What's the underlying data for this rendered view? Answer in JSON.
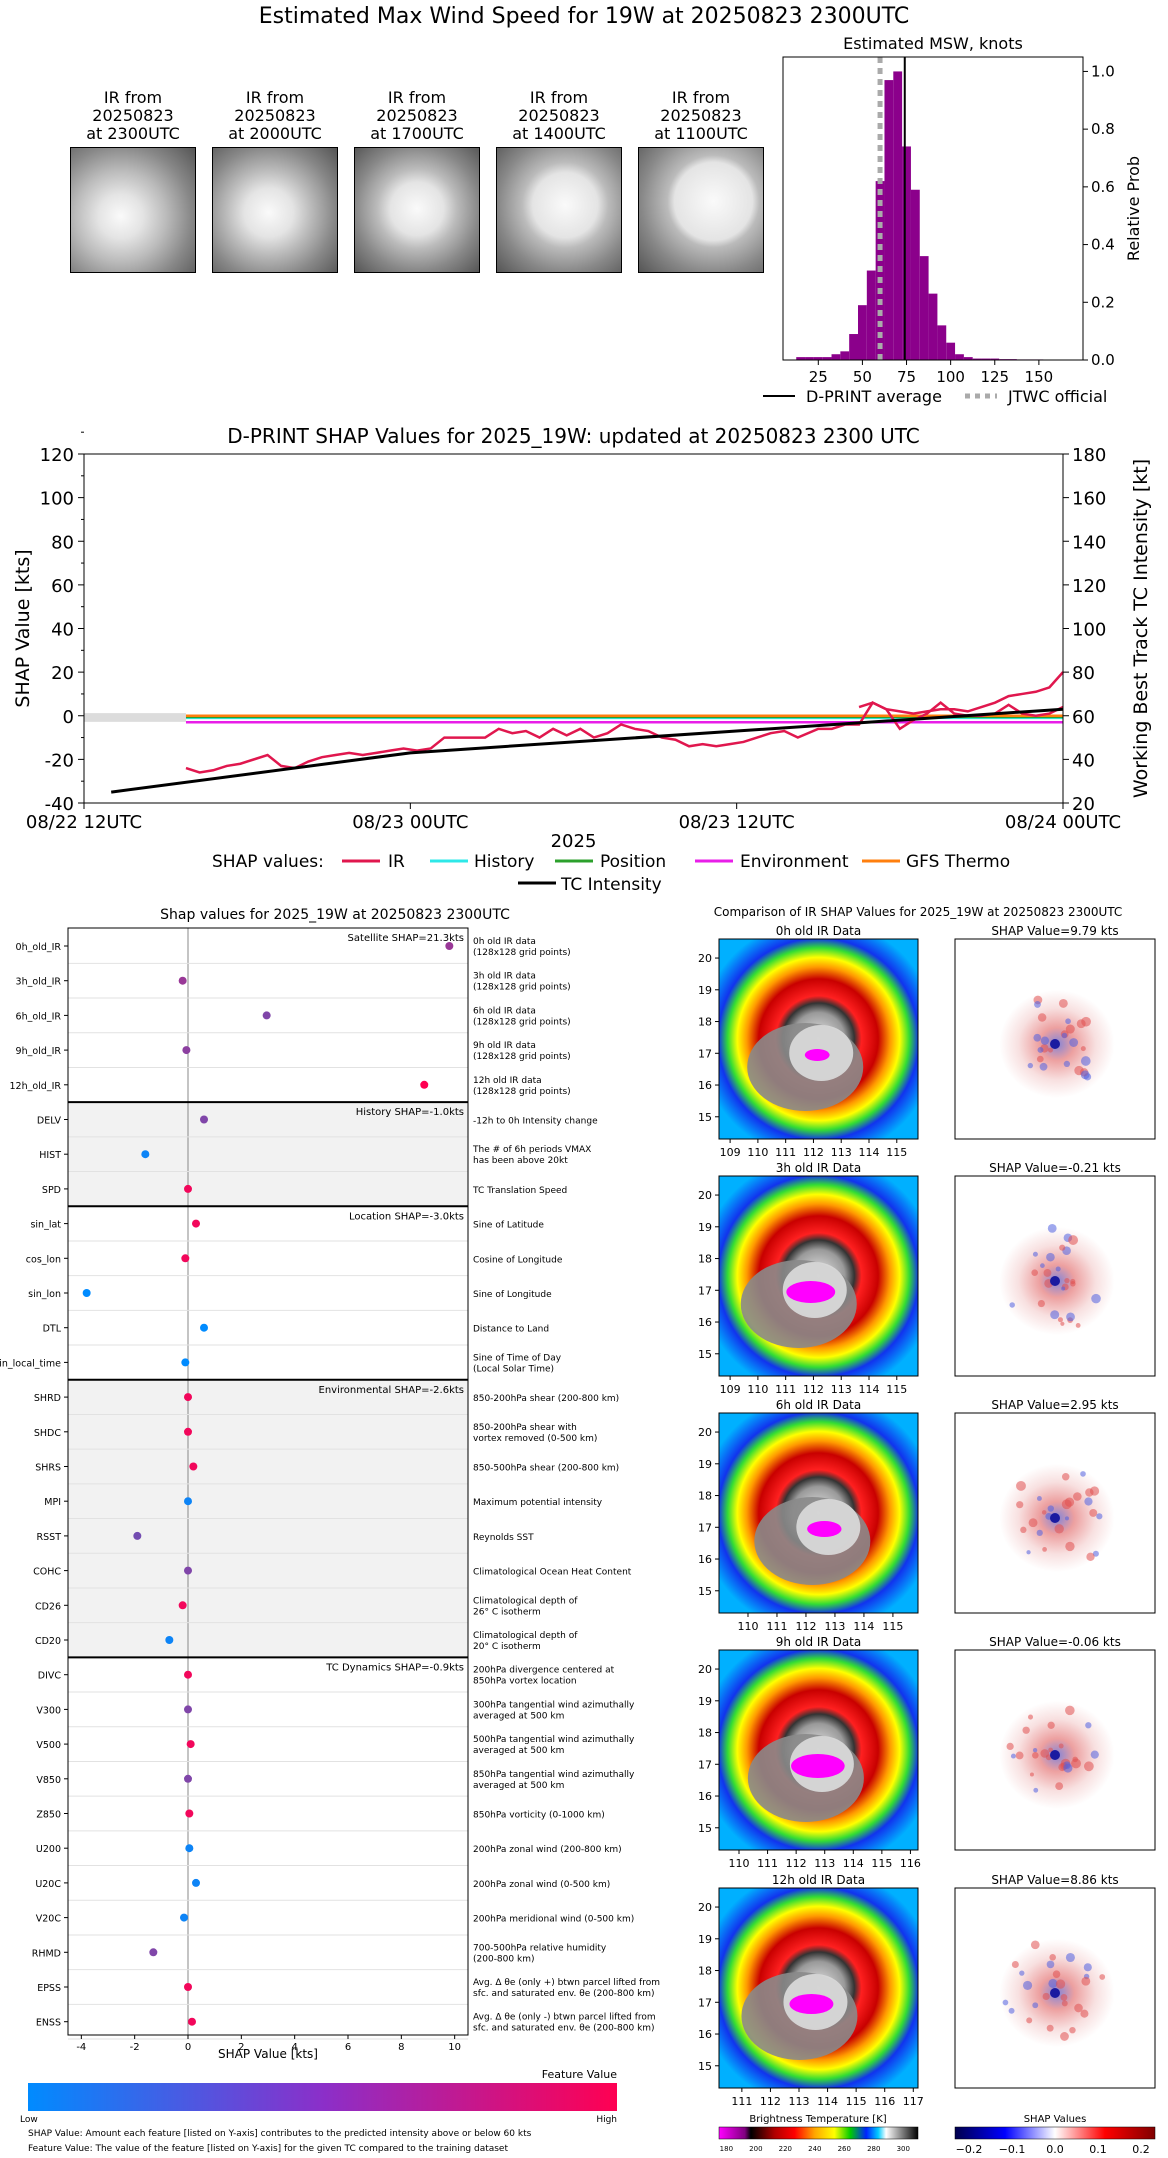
{
  "figure": {
    "title": "Estimated Max Wind Speed for 19W at 20250823 2300UTC"
  },
  "ir_thumbnails": [
    {
      "label": "IR from\n20250823\nat 2300UTC"
    },
    {
      "label": "IR from\n20250823\nat 2000UTC"
    },
    {
      "label": "IR from\n20250823\nat 1700UTC"
    },
    {
      "label": "IR from\n20250823\nat 1400UTC"
    },
    {
      "label": "IR from\n20250823\nat 1100UTC"
    }
  ],
  "colors": {
    "histogram": "#8b008b",
    "shap_ir": "#e0174e",
    "history": "#2ee8e8",
    "position": "#2ca02c",
    "environment": "#e81ee8",
    "gfs_thermo": "#ff7f0e",
    "tc_intensity": "#000000",
    "jtwc": "#aaaaaa"
  },
  "chart_data": [
    {
      "type": "bar",
      "title": "Estimated MSW, knots",
      "ylabel": "Relative Prob",
      "xlim": [
        5,
        175
      ],
      "ylim": [
        0,
        1.05
      ],
      "xticks": [
        25,
        50,
        75,
        100,
        125,
        150
      ],
      "yticks": [
        0.0,
        0.2,
        0.4,
        0.6,
        0.8,
        1.0
      ],
      "bin_width": 5,
      "bins": [
        {
          "x": 15,
          "y": 0.01
        },
        {
          "x": 20,
          "y": 0.01
        },
        {
          "x": 25,
          "y": 0.01
        },
        {
          "x": 30,
          "y": 0.01
        },
        {
          "x": 35,
          "y": 0.02
        },
        {
          "x": 40,
          "y": 0.03
        },
        {
          "x": 45,
          "y": 0.09
        },
        {
          "x": 50,
          "y": 0.19
        },
        {
          "x": 55,
          "y": 0.31
        },
        {
          "x": 60,
          "y": 0.62
        },
        {
          "x": 65,
          "y": 0.97
        },
        {
          "x": 70,
          "y": 1.0
        },
        {
          "x": 75,
          "y": 0.74
        },
        {
          "x": 80,
          "y": 0.59
        },
        {
          "x": 85,
          "y": 0.36
        },
        {
          "x": 90,
          "y": 0.23
        },
        {
          "x": 95,
          "y": 0.12
        },
        {
          "x": 100,
          "y": 0.06
        },
        {
          "x": 105,
          "y": 0.02
        },
        {
          "x": 110,
          "y": 0.01
        },
        {
          "x": 115,
          "y": 0.005
        },
        {
          "x": 120,
          "y": 0.005
        },
        {
          "x": 125,
          "y": 0.005
        },
        {
          "x": 130,
          "y": 0.003
        },
        {
          "x": 135,
          "y": 0.003
        },
        {
          "x": 140,
          "y": 0.002
        },
        {
          "x": 145,
          "y": 0.002
        },
        {
          "x": 150,
          "y": 0.002
        },
        {
          "x": 155,
          "y": 0.001
        },
        {
          "x": 160,
          "y": 0.001
        }
      ],
      "dprint_average": 74,
      "jtwc_official": 60,
      "legend": [
        "D-PRINT average",
        "JTWC official"
      ]
    },
    {
      "type": "line",
      "title": "D-PRINT SHAP Values for 2025_19W: updated at 20250823 2300 UTC",
      "xlabel": "2025",
      "ylabel": "SHAP Value [kts]",
      "y2label": "Working Best Track TC Intensity [kt]",
      "xlim": [
        0,
        36
      ],
      "ylim": [
        -40,
        120
      ],
      "y2lim": [
        20,
        180
      ],
      "xticks": [
        {
          "x": 0,
          "label": "08/22 12UTC"
        },
        {
          "x": 12,
          "label": "08/23 00UTC"
        },
        {
          "x": 24,
          "label": "08/23 12UTC"
        },
        {
          "x": 36,
          "label": "08/24 00UTC"
        }
      ],
      "yticks": [
        -40,
        -20,
        0,
        20,
        40,
        60,
        80,
        100,
        120
      ],
      "y2ticks": [
        20,
        40,
        60,
        80,
        100,
        120,
        140,
        160,
        180
      ],
      "legend_title": "SHAP values:",
      "series": [
        {
          "name": "IR",
          "x": [
            3.75,
            4.25,
            4.75,
            5.25,
            5.75,
            6.25,
            6.75,
            7.25,
            7.75,
            8.25,
            8.75,
            9.25,
            9.75,
            10.25,
            10.75,
            11.25,
            11.75,
            12.25,
            12.75,
            13.25,
            13.75,
            14.25,
            14.75,
            15.25,
            15.75,
            16.25,
            16.75,
            17.25,
            17.75,
            18.25,
            18.75,
            19.25,
            19.75,
            20.25,
            20.75,
            21.25,
            21.75,
            22.25,
            22.75,
            23.25,
            23.75,
            24.25,
            24.75,
            25.25,
            25.75,
            26.25,
            27.0,
            27.5,
            28.0,
            28.5,
            29.0,
            29.5,
            30.0,
            30.5,
            31.0,
            31.5,
            32.0,
            32.5,
            33.0,
            33.5,
            34.0,
            34.5,
            35.0,
            35.5,
            36.0
          ],
          "y": [
            -24,
            -26,
            -25,
            -23,
            -22,
            -20,
            -18,
            -23,
            -24,
            -21,
            -19,
            -18,
            -17,
            -18,
            -17,
            -16,
            -15,
            -16,
            -15,
            -10,
            -10,
            -10,
            -10,
            -6,
            -8,
            -7,
            -10,
            -6,
            -9,
            -6,
            -10,
            -8,
            -4,
            -6,
            -7,
            -10,
            -11,
            -14,
            -13,
            -14,
            -13,
            -12,
            -10,
            -8,
            -7,
            -10,
            -6,
            -6,
            -4,
            -4,
            6,
            3,
            -6,
            -2,
            1,
            6,
            1,
            0,
            0,
            1,
            5,
            1,
            0,
            1,
            4
          ],
          "x2": [
            28.5,
            29.0,
            29.5,
            30.0,
            30.5,
            31.0,
            31.5,
            32.0,
            32.5,
            33.0,
            33.5,
            34.0,
            34.5,
            35.0,
            35.5,
            36.0
          ],
          "y2": [
            4,
            6,
            3,
            2,
            1,
            2,
            3,
            3,
            2,
            4,
            6,
            9,
            10,
            11,
            13,
            20
          ]
        },
        {
          "name": "History",
          "x": [
            3.75,
            36
          ],
          "y": [
            -1,
            -1
          ]
        },
        {
          "name": "Position",
          "x": [
            3.75,
            36
          ],
          "y": [
            -0.5,
            -0.5
          ]
        },
        {
          "name": "Environment",
          "x": [
            3.75,
            36
          ],
          "y": [
            -3,
            -3
          ]
        },
        {
          "name": "GFS Thermo",
          "x": [
            3.75,
            36
          ],
          "y": [
            0,
            0
          ]
        },
        {
          "name": "TC Intensity",
          "x": [
            1,
            12,
            24,
            36
          ],
          "y2": [
            25,
            43,
            53,
            63
          ]
        }
      ]
    },
    {
      "type": "scatter",
      "title": "Shap values for 2025_19W at 20250823 2300UTC",
      "xlabel": "SHAP Value [kts]",
      "xlim": [
        -4.5,
        10.5
      ],
      "xticks": [
        -4,
        -2,
        0,
        2,
        4,
        6,
        8,
        10
      ],
      "groups": [
        {
          "label": "Satellite SHAP=21.3kts",
          "shaded": false,
          "features": [
            {
              "name": "0h_old_IR",
              "desc": "0h old IR data\n(128x128 grid points)",
              "x": 9.8,
              "f": 0.6
            },
            {
              "name": "3h_old_IR",
              "desc": "3h old IR data\n(128x128 grid points)",
              "x": -0.2,
              "f": 0.6
            },
            {
              "name": "6h_old_IR",
              "desc": "6h old IR data\n(128x128 grid points)",
              "x": 2.95,
              "f": 0.5
            },
            {
              "name": "9h_old_IR",
              "desc": "9h old IR data\n(128x128 grid points)",
              "x": -0.06,
              "f": 0.55
            },
            {
              "name": "12h_old_IR",
              "desc": "12h old IR data\n(128x128 grid points)",
              "x": 8.86,
              "f": 1.0
            }
          ]
        },
        {
          "label": "History SHAP=-1.0kts",
          "shaded": true,
          "features": [
            {
              "name": "DELV",
              "desc": "-12h to 0h Intensity change",
              "x": 0.6,
              "f": 0.5
            },
            {
              "name": "HIST",
              "desc": "The # of 6h periods VMAX\nhas been above 20kt",
              "x": -1.6,
              "f": 0.05
            },
            {
              "name": "SPD",
              "desc": "TC Translation Speed",
              "x": 0.0,
              "f": 0.95
            }
          ]
        },
        {
          "label": "Location SHAP=-3.0kts",
          "shaded": false,
          "features": [
            {
              "name": "sin_lat",
              "desc": "Sine of Latitude",
              "x": 0.3,
              "f": 0.95
            },
            {
              "name": "cos_lon",
              "desc": "Cosine of Longitude",
              "x": -0.1,
              "f": 0.95
            },
            {
              "name": "sin_lon",
              "desc": "Sine of Longitude",
              "x": -3.8,
              "f": 0.0
            },
            {
              "name": "DTL",
              "desc": "Distance to Land",
              "x": 0.6,
              "f": 0.0
            },
            {
              "name": "sin_local_time",
              "desc": "Sine of Time of Day\n(Local Solar Time)",
              "x": -0.1,
              "f": 0.0
            }
          ]
        },
        {
          "label": "Environmental SHAP=-2.6kts",
          "shaded": true,
          "features": [
            {
              "name": "SHRD",
              "desc": "850-200hPa shear (200-800 km)",
              "x": 0.0,
              "f": 0.95
            },
            {
              "name": "SHDC",
              "desc": "850-200hPa shear with\nvortex removed (0-500 km)",
              "x": 0.0,
              "f": 0.95
            },
            {
              "name": "SHRS",
              "desc": "850-500hPa shear (200-800 km)",
              "x": 0.2,
              "f": 0.95
            },
            {
              "name": "MPI",
              "desc": "Maximum potential intensity",
              "x": 0.0,
              "f": 0.05
            },
            {
              "name": "RSST",
              "desc": "Reynolds SST",
              "x": -1.9,
              "f": 0.45
            },
            {
              "name": "COHC",
              "desc": "Climatological Ocean Heat Content",
              "x": 0.0,
              "f": 0.5
            },
            {
              "name": "CD26",
              "desc": "Climatological depth of\n26° C isotherm",
              "x": -0.2,
              "f": 0.95
            },
            {
              "name": "CD20",
              "desc": "Climatological depth of\n20° C isotherm",
              "x": -0.7,
              "f": 0.05
            }
          ]
        },
        {
          "label": "TC Dynamics SHAP=-0.9kts",
          "shaded": false,
          "features": [
            {
              "name": "DIVC",
              "desc": "200hPa divergence centered at\n850hPa vortex location",
              "x": 0.0,
              "f": 0.95
            },
            {
              "name": "V300",
              "desc": "300hPa tangential wind azimuthally\naveraged at 500 km",
              "x": 0.0,
              "f": 0.5
            },
            {
              "name": "V500",
              "desc": "500hPa tangential wind azimuthally\naveraged at 500 km",
              "x": 0.1,
              "f": 0.95
            },
            {
              "name": "V850",
              "desc": "850hPa tangential wind azimuthally\naveraged at 500 km",
              "x": 0.0,
              "f": 0.5
            },
            {
              "name": "Z850",
              "desc": "850hPa vorticity (0-1000 km)",
              "x": 0.05,
              "f": 0.95
            },
            {
              "name": "U200",
              "desc": "200hPa zonal wind (200-800 km)",
              "x": 0.05,
              "f": 0.05
            },
            {
              "name": "U20C",
              "desc": "200hPa zonal wind (0-500 km)",
              "x": 0.3,
              "f": 0.05
            },
            {
              "name": "V20C",
              "desc": "200hPa meridional wind (0-500 km)",
              "x": -0.15,
              "f": 0.05
            },
            {
              "name": "RHMD",
              "desc": "700-500hPa relative humidity\n(200-800 km)",
              "x": -1.3,
              "f": 0.5
            },
            {
              "name": "EPSS",
              "desc": "Avg. Δ θe (only +) btwn parcel lifted from\nsfc. and saturated env. θe (200-800 km)",
              "x": 0.0,
              "f": 0.95
            },
            {
              "name": "ENSS",
              "desc": "Avg. Δ θe (only -) btwn parcel lifted from\nsfc. and saturated env. θe (200-800 km)",
              "x": 0.15,
              "f": 0.95
            }
          ]
        }
      ]
    }
  ],
  "feature_value_bar": {
    "title": "Feature Value",
    "low": "Low",
    "high": "High"
  },
  "footnotes": [
    "SHAP Value: Amount each feature [listed on Y-axis] contributes to the predicted intensity above or below 60 kts",
    "Feature Value: The value of the feature [listed on Y-axis] for the given TC compared to the training dataset"
  ],
  "ir_compare": {
    "title": "Comparison of IR SHAP Values for 2025_19W at 20250823 2300UTC",
    "yticks": [
      15,
      16,
      17,
      18,
      19,
      20
    ],
    "rows": [
      {
        "label": "0h old IR Data",
        "shap": "SHAP Value=9.79 kts",
        "lons": [
          109,
          110,
          111,
          112,
          113,
          114,
          115
        ],
        "lon0": 108.6,
        "lon1": 115.8,
        "magenta": 0.1
      },
      {
        "label": "3h old IR Data",
        "shap": "SHAP Value=-0.21 kts",
        "lons": [
          109,
          110,
          111,
          112,
          113,
          114,
          115
        ],
        "lon0": 108.6,
        "lon1": 115.8,
        "magenta": 0.6
      },
      {
        "label": "6h old IR Data",
        "shap": "SHAP Value=2.95 kts",
        "lons": [
          110,
          111,
          112,
          113,
          114,
          115
        ],
        "lon0": 109.0,
        "lon1": 115.9,
        "magenta": 0.3
      },
      {
        "label": "9h old IR Data",
        "shap": "SHAP Value=-0.06 kts",
        "lons": [
          110,
          111,
          112,
          113,
          114,
          115,
          116
        ],
        "lon0": 109.3,
        "lon1": 116.3,
        "magenta": 0.7
      },
      {
        "label": "12h old IR Data",
        "shap": "SHAP Value=8.86 kts",
        "lons": [
          111,
          112,
          113,
          114,
          115,
          116,
          117
        ],
        "lon0": 110.2,
        "lon1": 117.2,
        "magenta": 0.5
      }
    ],
    "bt_title": "Brightness Temperature [K]",
    "bt_ticks": [
      180,
      200,
      220,
      240,
      260,
      280,
      300
    ],
    "sv_title": "SHAP Values",
    "sv_ticks": [
      "−0.2",
      "−0.1",
      "0.0",
      "0.1",
      "0.2"
    ]
  }
}
